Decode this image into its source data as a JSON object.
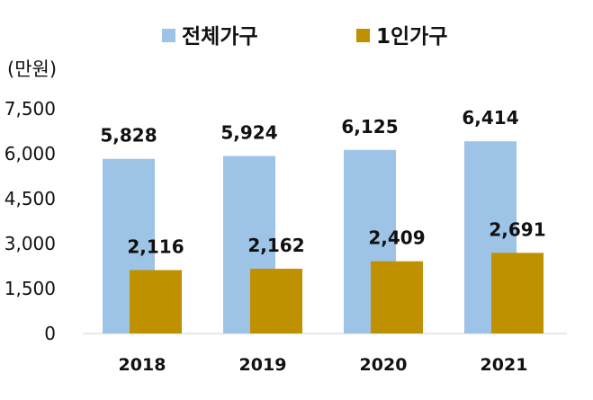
{
  "chart_data": {
    "type": "bar",
    "categories": [
      "2018",
      "2019",
      "2020",
      "2021"
    ],
    "series": [
      {
        "name": "전체가구",
        "color": "#9DC3E6",
        "values": [
          5828,
          5924,
          6125,
          6414
        ],
        "labels": [
          "5,828",
          "5,924",
          "6,125",
          "6,414"
        ]
      },
      {
        "name": "1인가구",
        "color": "#BF9000",
        "values": [
          2116,
          2162,
          2409,
          2691
        ],
        "labels": [
          "2,116",
          "2,162",
          "2,409",
          "2,691"
        ]
      }
    ],
    "unit_label": "(만원)",
    "ylim": [
      0,
      7500
    ],
    "y_ticks": [
      0,
      1500,
      3000,
      4500,
      6000,
      7500
    ],
    "y_tick_labels": [
      "0",
      "1,500",
      "3,000",
      "4,500",
      "6,000",
      "7,500"
    ],
    "grid": false,
    "legend_position": "top"
  }
}
